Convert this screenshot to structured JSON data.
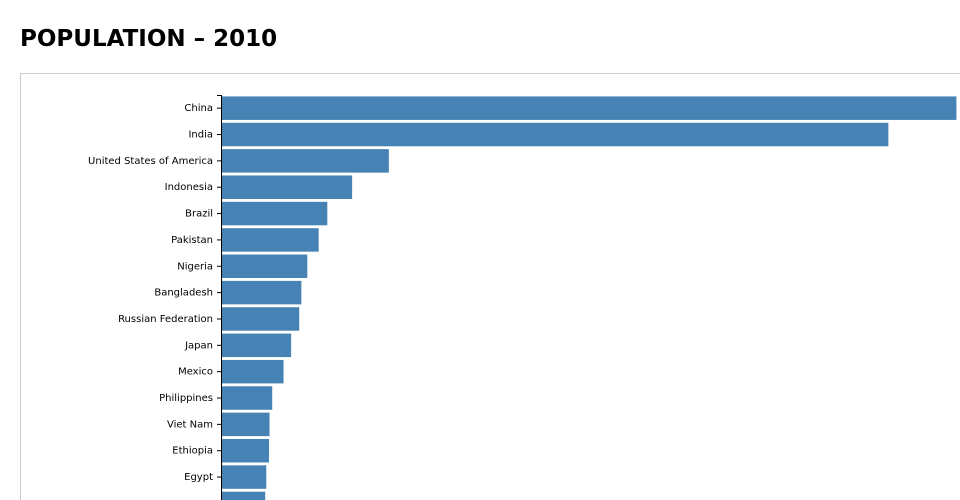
{
  "chart_data": {
    "type": "bar",
    "orientation": "horizontal",
    "title": "POPULATION – 2010",
    "categories": [
      "China",
      "India",
      "United States of America",
      "Indonesia",
      "Brazil",
      "Pakistan",
      "Nigeria",
      "Bangladesh",
      "Russian Federation",
      "Japan",
      "Mexico",
      "Philippines",
      "Viet Nam",
      "Ethiopia",
      "Egypt",
      null
    ],
    "values": [
      1360,
      1234,
      309,
      241,
      195,
      179,
      158,
      147,
      143,
      128,
      114,
      93,
      88,
      87,
      82,
      80
    ],
    "color": "#4682b4"
  }
}
